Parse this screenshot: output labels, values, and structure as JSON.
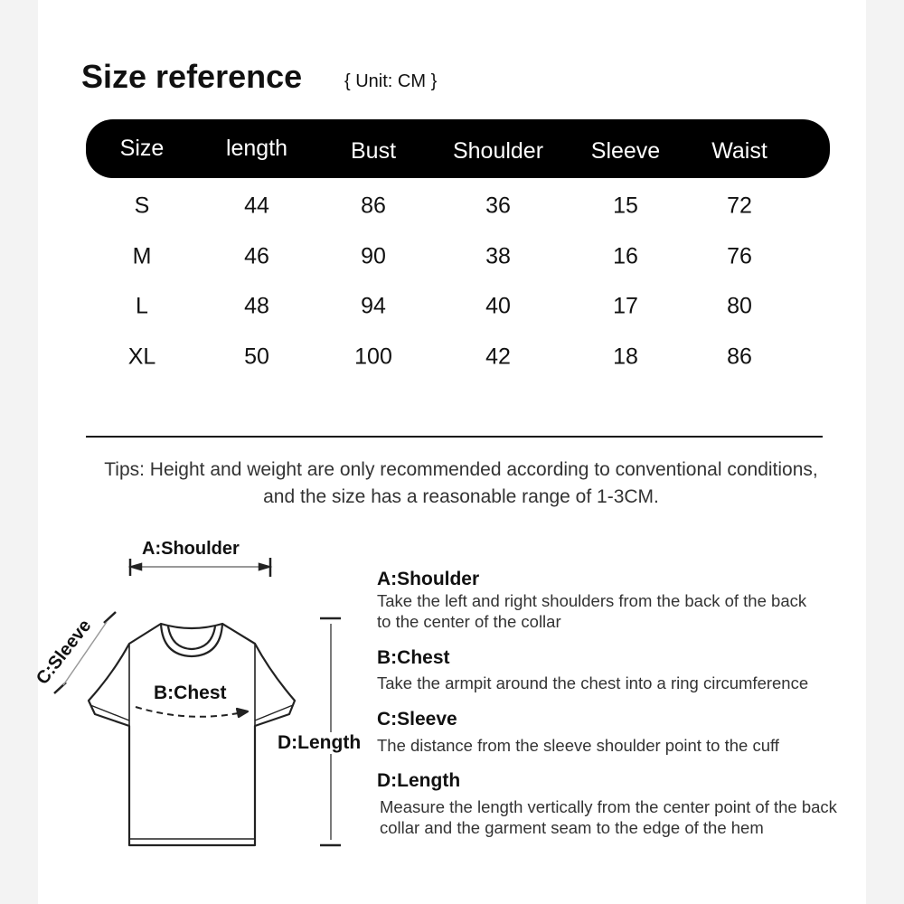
{
  "title": "Size reference",
  "unit": "{ Unit: CM }",
  "table": {
    "headers": [
      "Size",
      "length",
      "Bust",
      "Shoulder",
      "Sleeve",
      "Waist"
    ],
    "rows": [
      [
        "S",
        "44",
        "86",
        "36",
        "15",
        "72"
      ],
      [
        "M",
        "46",
        "90",
        "38",
        "16",
        "76"
      ],
      [
        "L",
        "48",
        "94",
        "40",
        "17",
        "80"
      ],
      [
        "XL",
        "50",
        "100",
        "42",
        "18",
        "86"
      ]
    ]
  },
  "tips": "Tips: Height and weight are only recommended according to conventional conditions, and the size has a reasonable range of 1-3CM.",
  "diagram": {
    "shoulder": "A:Shoulder",
    "sleeve": "C:Sleeve",
    "chest": "B:Chest",
    "length": "D:Length"
  },
  "descriptions": [
    {
      "label": "A:Shoulder",
      "text": "Take the left and right shoulders from the back of the back to the center of the collar"
    },
    {
      "label": "B:Chest",
      "text": "Take the armpit around the chest into a ring circumference"
    },
    {
      "label": "C:Sleeve",
      "text": "The distance from the sleeve shoulder point to the cuff"
    },
    {
      "label": "D:Length",
      "text": "Measure the length vertically from the center point of the back collar and the garment seam to the edge of the hem"
    }
  ]
}
